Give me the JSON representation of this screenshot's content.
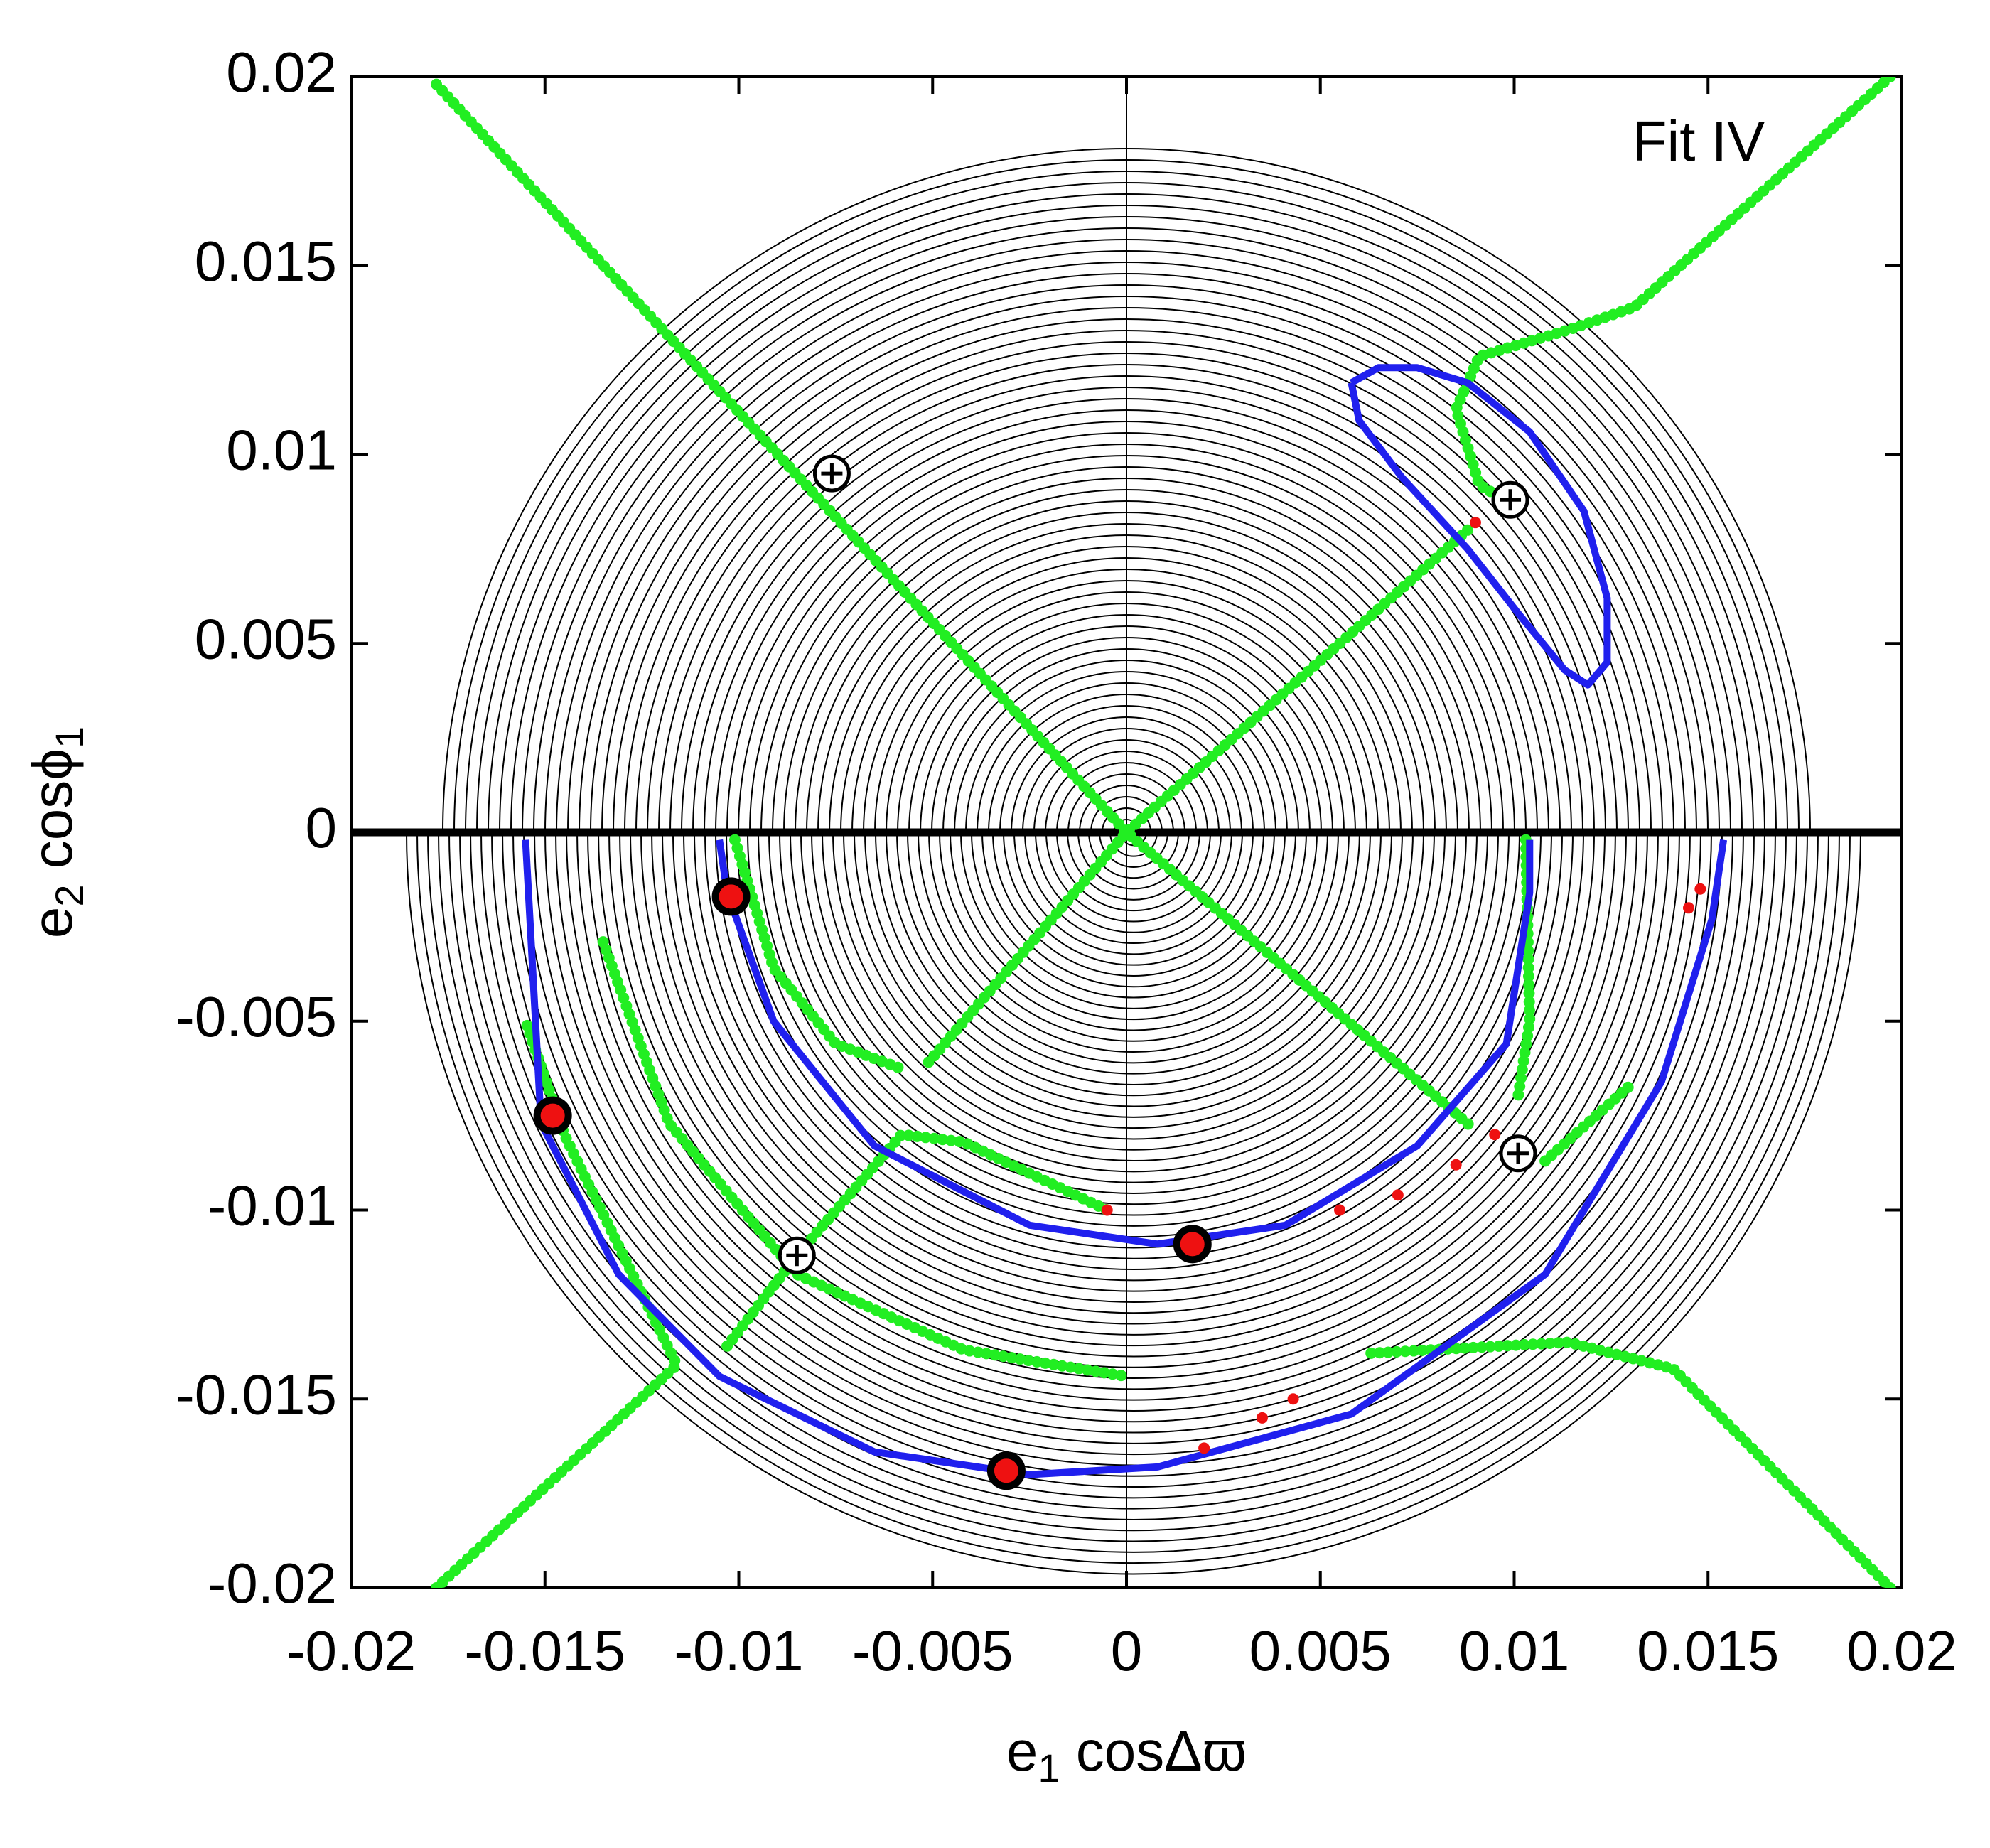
{
  "chart_data": {
    "type": "scatter",
    "annotation": "Fit IV",
    "xlabel": [
      "e",
      "1",
      " cosΔϖ"
    ],
    "ylabel": [
      "e",
      "2",
      " cosϕ",
      "1"
    ],
    "xlim": [
      -0.02,
      0.02
    ],
    "ylim": [
      -0.02,
      0.02
    ],
    "xticks": [
      -0.02,
      -0.015,
      -0.01,
      -0.005,
      0,
      0.005,
      0.01,
      0.015,
      0.02
    ],
    "yticks": [
      -0.02,
      -0.015,
      -0.01,
      -0.005,
      0,
      0.005,
      0.01,
      0.015,
      0.02
    ],
    "series": [
      {
        "style": "green",
        "color": "#22ee22",
        "x": [
          -0.0178,
          0,
          0.0089,
          null,
          0.0088,
          0,
          -0.0052,
          null,
          0.0197,
          0.0131,
          0.0114,
          0.0091,
          0.0085,
          0.0091,
          0.0099,
          null,
          0.0197,
          0.0141,
          0.0114,
          0.0061,
          null,
          -0.0178,
          -0.0116,
          -0.0145,
          -0.0155,
          null,
          -0.0101,
          -0.0091,
          -0.0075,
          -0.0057,
          null,
          -0.0103,
          -0.0085,
          -0.0058,
          -0.0042,
          -0.0005,
          null,
          -0.0135,
          -0.0118,
          -0.0085,
          -0.0042,
          0,
          null,
          0.0103,
          0.0104,
          0.0101,
          null,
          0.0108,
          0.0131
        ],
        "y": [
          0.0198,
          0,
          -0.0078,
          null,
          0.008,
          0,
          -0.0062,
          null,
          0.02,
          0.0139,
          0.0133,
          0.0126,
          0.0112,
          0.0092,
          0.0087,
          null,
          -0.02,
          -0.0142,
          -0.0135,
          -0.0138,
          null,
          -0.02,
          -0.0141,
          -0.008,
          -0.005,
          null,
          -0.0002,
          -0.0036,
          -0.0056,
          -0.0063,
          null,
          -0.0136,
          -0.0112,
          -0.008,
          -0.0082,
          -0.01,
          null,
          -0.0029,
          -0.0077,
          -0.0117,
          -0.0137,
          -0.0144,
          null,
          -0.0002,
          -0.005,
          -0.007,
          null,
          -0.0087,
          -0.0066
        ]
      },
      {
        "style": "blue",
        "color": "#2020ee",
        "x": [
          0.0058,
          0.0065,
          0.0075,
          0.0088,
          0.0104,
          0.0118,
          0.0124,
          0.0124,
          0.0119,
          0.0113,
          0.0101,
          0.0088,
          0.0071,
          0.006,
          0.0058,
          null,
          -0.0155,
          -0.0151,
          -0.0131,
          -0.0105,
          -0.0065,
          -0.0025,
          0.0008,
          0.0058,
          0.0108,
          0.0138,
          0.0151,
          0.0154,
          null,
          -0.0105,
          -0.0103,
          -0.0091,
          -0.0065,
          -0.0025,
          0.0008,
          0.0041,
          0.0075,
          0.0098,
          0.0104,
          0.0104
        ],
        "y": [
          0.0119,
          0.0123,
          0.0123,
          0.0119,
          0.0106,
          0.0085,
          0.0062,
          0.0045,
          0.0039,
          0.0043,
          0.0058,
          0.0075,
          0.0094,
          0.0109,
          0.0119,
          null,
          -0.0002,
          -0.0077,
          -0.0117,
          -0.0144,
          -0.0164,
          -0.017,
          -0.0168,
          -0.0154,
          -0.0117,
          -0.0066,
          -0.0023,
          -0.0002,
          null,
          -0.0002,
          -0.0016,
          -0.005,
          -0.0083,
          -0.0104,
          -0.0109,
          -0.0104,
          -0.0083,
          -0.0056,
          -0.0016,
          -0.0002
        ]
      },
      {
        "style": "red-dots",
        "color": "#ee1111",
        "x": [
          0.0055,
          0.007,
          0.0085,
          0.0095,
          0.002,
          0.0035,
          0.0043,
          0.0145,
          0.0148,
          -0.0005,
          0.009
        ],
        "y": [
          -0.01,
          -0.0096,
          -0.0088,
          -0.008,
          -0.0163,
          -0.0155,
          -0.015,
          -0.002,
          -0.0015,
          -0.01,
          0.0082
        ]
      },
      {
        "style": "stable",
        "color": "#ee1111",
        "x": [
          -0.0102,
          -0.0148,
          0.0017,
          -0.0031
        ],
        "y": [
          -0.0017,
          -0.0075,
          -0.0109,
          -0.0169
        ]
      },
      {
        "style": "saddle",
        "color": "#22ee22",
        "x": [
          -0.0076,
          0.0099,
          0.0101,
          -0.0085
        ],
        "y": [
          0.0095,
          0.0088,
          -0.0085,
          -0.0112
        ]
      }
    ]
  }
}
